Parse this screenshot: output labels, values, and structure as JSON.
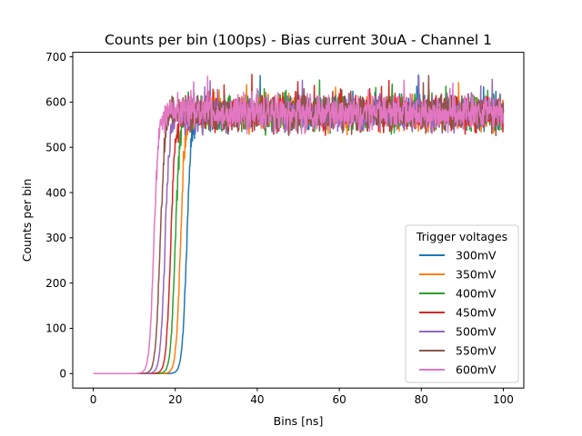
{
  "chart_data": {
    "type": "line",
    "title": "Counts per bin (100ps) - Bias current 30uA - Channel 1",
    "xlabel": "Bins [ns]",
    "ylabel": "Counts per bin",
    "xlim": [
      -5,
      105
    ],
    "ylim": [
      -32,
      710
    ],
    "x_ticks": [
      0,
      20,
      40,
      60,
      80,
      100
    ],
    "y_ticks": [
      0,
      100,
      200,
      300,
      400,
      500,
      600,
      700
    ],
    "grid": false,
    "legend": {
      "title": "Trigger voltages",
      "placement": "lower-right"
    },
    "x_range": [
      0,
      100
    ],
    "noise_amplitude_note": "signal plateaus near 575 with fluctuation between ~510 and ~670",
    "series": [
      {
        "name": "300mV",
        "color": "#1f77b4",
        "rise_center": 22.8,
        "plateau": 575
      },
      {
        "name": "350mV",
        "color": "#ff7f0e",
        "rise_center": 21.3,
        "plateau": 575
      },
      {
        "name": "400mV",
        "color": "#2ca02c",
        "rise_center": 20.0,
        "plateau": 575
      },
      {
        "name": "450mV",
        "color": "#d62728",
        "rise_center": 18.9,
        "plateau": 575
      },
      {
        "name": "500mV",
        "color": "#9467bd",
        "rise_center": 17.5,
        "plateau": 575
      },
      {
        "name": "550mV",
        "color": "#8c564b",
        "rise_center": 16.3,
        "plateau": 575
      },
      {
        "name": "600mV",
        "color": "#e377c2",
        "rise_center": 14.8,
        "plateau": 575
      }
    ]
  }
}
